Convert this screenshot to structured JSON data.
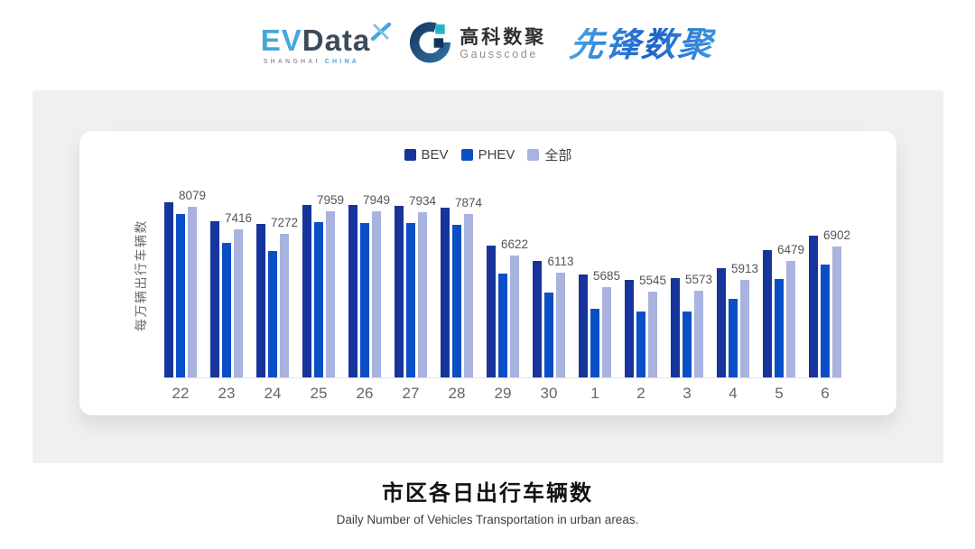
{
  "header": {
    "evdata": {
      "ev": "EV",
      "data": "Data",
      "sub_left": "SHANGHAI",
      "sub_right": "CHINA"
    },
    "gausscode": {
      "cn": "高科数聚",
      "en": "Gausscode"
    },
    "xianfeng": "先锋数聚"
  },
  "palette": {
    "bev": "#16349C",
    "phev": "#0B4FC7",
    "all": "#A9B3DF",
    "evdata_blue": "#45A7DC",
    "evdata_dark": "#3D4A5A",
    "gausscode_teal": "#23B3C7",
    "gausscode_navy": "#14335C",
    "panel_gray": "#F0F0F0"
  },
  "chart_data": {
    "type": "bar",
    "title": "市区各日出行车辆数",
    "subtitle": "Daily Number of Vehicles Transportation in urban areas.",
    "ylabel": "每万辆出行车辆数",
    "xlabel": "",
    "categories": [
      "22",
      "23",
      "24",
      "25",
      "26",
      "27",
      "28",
      "29",
      "30",
      "1",
      "2",
      "3",
      "4",
      "5",
      "6"
    ],
    "series": [
      {
        "name": "BEV",
        "color": "#16349C",
        "values": [
          8220,
          7660,
          7570,
          8140,
          8130,
          8120,
          8050,
          6920,
          6470,
          6060,
          5920,
          5950,
          6260,
          6800,
          7220
        ]
      },
      {
        "name": "PHEV",
        "color": "#0B4FC7",
        "values": [
          7860,
          7000,
          6780,
          7630,
          7610,
          7590,
          7550,
          6100,
          5540,
          5050,
          4960,
          4960,
          5350,
          5930,
          6370
        ]
      },
      {
        "name": "全部",
        "color": "#A9B3DF",
        "values": [
          8079,
          7416,
          7272,
          7959,
          7949,
          7934,
          7874,
          6622,
          6113,
          5685,
          5545,
          5573,
          5913,
          6479,
          6902
        ],
        "labels_shown": true
      }
    ],
    "ylim": [
      3000,
      9000
    ],
    "grid": false,
    "legend_position": "top"
  }
}
